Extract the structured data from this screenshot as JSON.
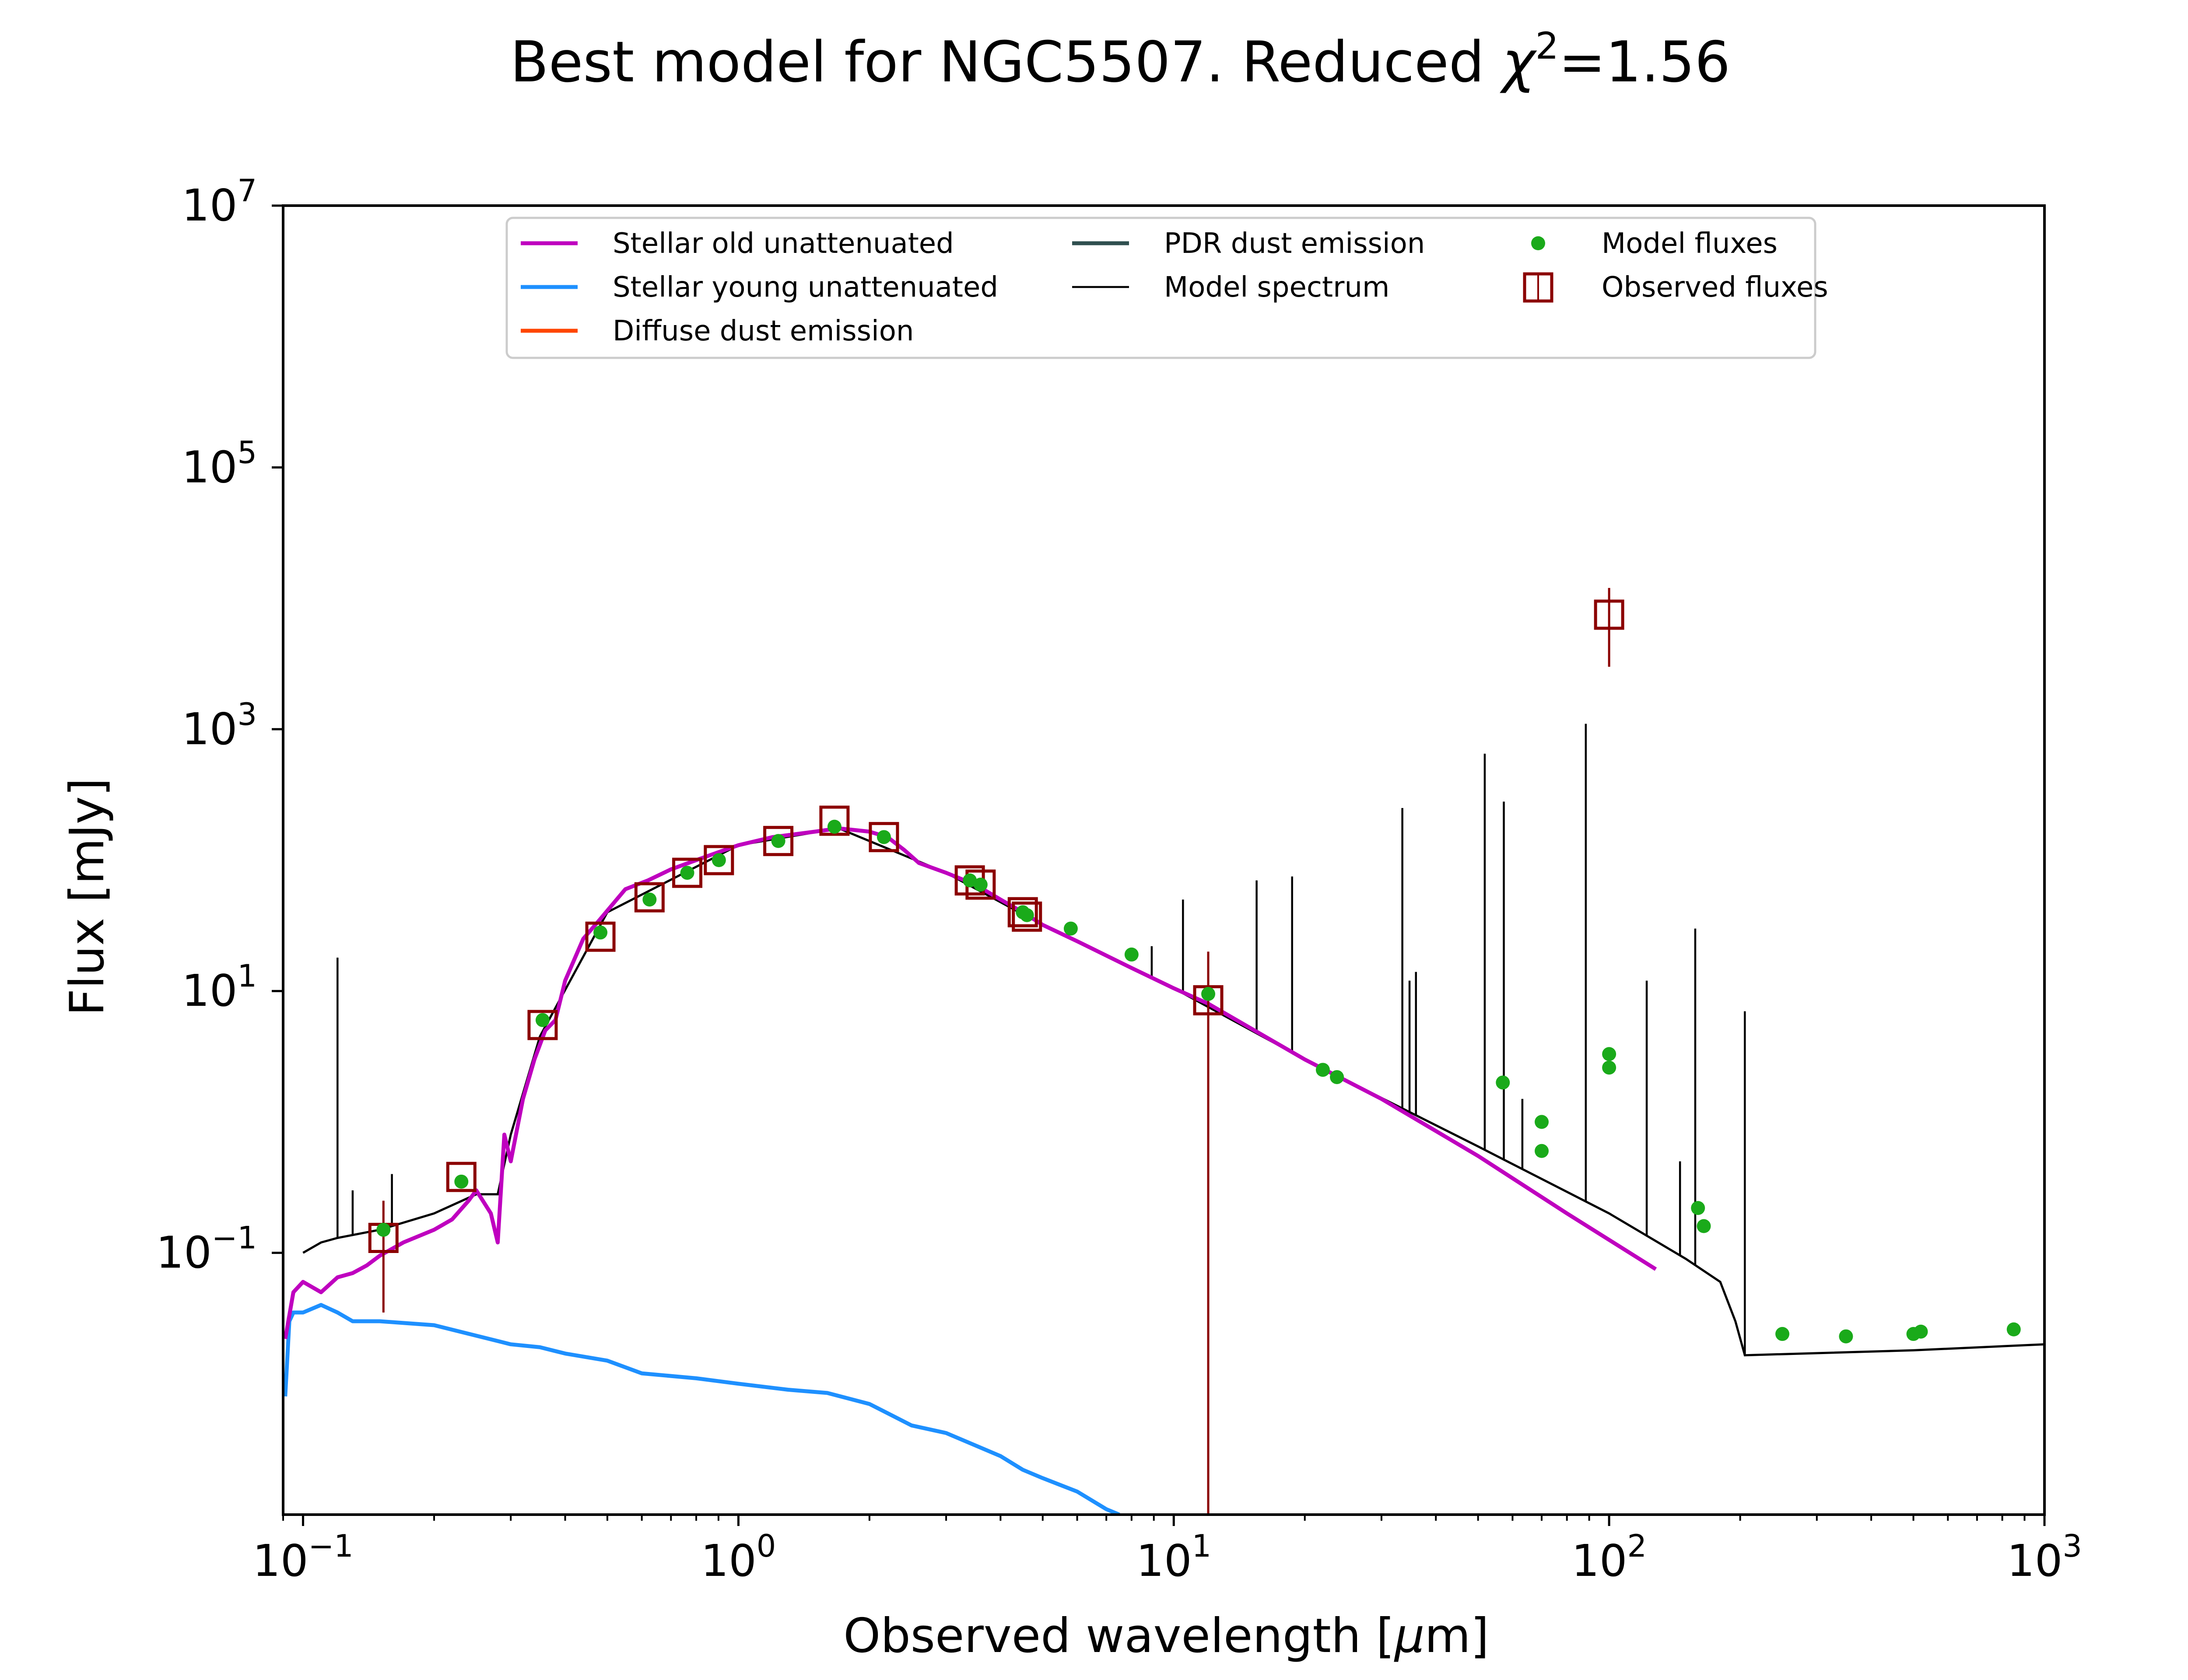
{
  "chart_data": {
    "type": "line",
    "title": {
      "prefix": "Best model for NGC5507. Reduced ",
      "chi": "χ",
      "chi_exp": "2",
      "suffix": "=1.56"
    },
    "xlabel": {
      "prefix": "Observed wavelength [",
      "mu": "μ",
      "suffix": "m]"
    },
    "ylabel": "Flux [mJy]",
    "xscale": "log",
    "yscale": "log",
    "xlim": [
      0.09,
      1000
    ],
    "ylim": [
      0.001,
      10000000
    ],
    "x_ticks": [
      {
        "value": 0.1,
        "base": "10",
        "exp": "−1"
      },
      {
        "value": 1,
        "base": "10",
        "exp": "0"
      },
      {
        "value": 10,
        "base": "10",
        "exp": "1"
      },
      {
        "value": 100,
        "base": "10",
        "exp": "2"
      },
      {
        "value": 1000,
        "base": "10",
        "exp": "3"
      }
    ],
    "y_ticks": [
      {
        "value": 0.1,
        "base": "10",
        "exp": "−1"
      },
      {
        "value": 10,
        "base": "10",
        "exp": "1"
      },
      {
        "value": 1000,
        "base": "10",
        "exp": "3"
      },
      {
        "value": 100000,
        "base": "10",
        "exp": "5"
      },
      {
        "value": 10000000,
        "base": "10",
        "exp": "7"
      }
    ],
    "grid": false,
    "legend": {
      "placement": "top-center",
      "entries": [
        {
          "label": "Stellar old unattenuated",
          "kind": "line",
          "color": "#bf00bf"
        },
        {
          "label": "Stellar young unattenuated",
          "kind": "line",
          "color": "#1e90ff"
        },
        {
          "label": "Diffuse dust emission",
          "kind": "line",
          "color": "#ff4500"
        },
        {
          "label": "PDR dust emission",
          "kind": "line",
          "color": "#2f4f4f"
        },
        {
          "label": "Model spectrum",
          "kind": "thin-line",
          "color": "#000000"
        },
        {
          "label": "Model fluxes",
          "kind": "dot",
          "color": "#1aaa1a"
        },
        {
          "label": "Observed fluxes",
          "kind": "square",
          "color": "#8b0000"
        }
      ]
    },
    "series": [
      {
        "name": "Stellar old unattenuated",
        "color": "#bf00bf",
        "x": [
          0.091,
          0.095,
          0.1,
          0.11,
          0.12,
          0.13,
          0.14,
          0.15,
          0.17,
          0.2,
          0.22,
          0.24,
          0.25,
          0.27,
          0.28,
          0.29,
          0.3,
          0.32,
          0.34,
          0.36,
          0.38,
          0.4,
          0.44,
          0.48,
          0.55,
          0.62,
          0.7,
          0.8,
          0.9,
          1.0,
          1.2,
          1.5,
          1.7,
          2.0,
          2.2,
          2.4,
          2.6,
          3.0,
          3.5,
          4.0,
          4.5,
          5,
          6,
          8,
          10,
          12,
          20,
          30,
          50,
          80,
          128
        ],
        "y": [
          0.022,
          0.05,
          0.06,
          0.05,
          0.065,
          0.07,
          0.08,
          0.095,
          0.12,
          0.15,
          0.18,
          0.25,
          0.3,
          0.2,
          0.12,
          0.8,
          0.5,
          1.5,
          3,
          5,
          6,
          12,
          25,
          35,
          60,
          70,
          85,
          100,
          115,
          130,
          150,
          165,
          175,
          165,
          150,
          120,
          95,
          80,
          65,
          50,
          40,
          32,
          24,
          15,
          10.5,
          8,
          3,
          1.5,
          0.55,
          0.2,
          0.075
        ]
      },
      {
        "name": "Stellar young unattenuated",
        "color": "#1e90ff",
        "x": [
          0.091,
          0.093,
          0.095,
          0.1,
          0.11,
          0.12,
          0.13,
          0.15,
          0.2,
          0.3,
          0.35,
          0.4,
          0.5,
          0.6,
          0.8,
          1.0,
          1.3,
          1.6,
          2.0,
          2.5,
          3.0,
          4.0,
          4.5,
          5.0,
          6.0,
          7.0,
          7.5
        ],
        "y": [
          0.008,
          0.03,
          0.035,
          0.035,
          0.04,
          0.035,
          0.03,
          0.03,
          0.028,
          0.02,
          0.019,
          0.017,
          0.015,
          0.012,
          0.011,
          0.01,
          0.009,
          0.0085,
          0.007,
          0.0048,
          0.0042,
          0.0028,
          0.0022,
          0.0019,
          0.0015,
          0.0011,
          0.001
        ]
      },
      {
        "name": "Model spectrum",
        "color": "#000000",
        "x": [
          0.1,
          0.11,
          0.12,
          0.15,
          0.2,
          0.25,
          0.28,
          0.3,
          0.35,
          0.5,
          1.0,
          1.7,
          3,
          5,
          10,
          20,
          50,
          100,
          150,
          180,
          195,
          205,
          500,
          1000
        ],
        "y": [
          0.1,
          0.12,
          0.13,
          0.15,
          0.2,
          0.28,
          0.28,
          0.8,
          4.5,
          40,
          130,
          175,
          80,
          32,
          10.5,
          3,
          0.65,
          0.2,
          0.09,
          0.06,
          0.03,
          0.0165,
          0.018,
          0.02
        ],
        "lines": [
          {
            "x": 0.12,
            "peak": 18
          },
          {
            "x": 0.13,
            "peak": 0.3
          },
          {
            "x": 0.16,
            "peak": 0.4
          },
          {
            "x": 8.9,
            "peak": 22
          },
          {
            "x": 10.5,
            "peak": 50
          },
          {
            "x": 15.5,
            "peak": 70
          },
          {
            "x": 18.7,
            "peak": 75
          },
          {
            "x": 33.5,
            "peak": 250
          },
          {
            "x": 34.8,
            "peak": 12
          },
          {
            "x": 36.0,
            "peak": 14
          },
          {
            "x": 51.8,
            "peak": 650
          },
          {
            "x": 57.3,
            "peak": 280
          },
          {
            "x": 63.2,
            "peak": 1.5
          },
          {
            "x": 88.4,
            "peak": 1100
          },
          {
            "x": 122,
            "peak": 12
          },
          {
            "x": 145.5,
            "peak": 0.5
          },
          {
            "x": 157.7,
            "peak": 30
          },
          {
            "x": 205,
            "peak": 7
          }
        ]
      },
      {
        "name": "Model fluxes",
        "color": "#1aaa1a",
        "x": [
          0.153,
          0.231,
          0.355,
          0.482,
          0.625,
          0.763,
          0.902,
          1.235,
          1.662,
          2.159,
          3.4,
          3.6,
          4.5,
          4.6,
          5.8,
          8.0,
          12.0,
          22.0,
          23.7,
          57,
          70,
          70,
          100,
          100,
          160,
          165,
          250,
          350,
          500,
          520,
          850
        ],
        "y": [
          0.15,
          0.35,
          6.0,
          28,
          50,
          80,
          100,
          140,
          180,
          150,
          70,
          65,
          40,
          38,
          30,
          19,
          9.5,
          2.5,
          2.2,
          2.0,
          1.0,
          0.6,
          3.3,
          2.6,
          0.22,
          0.16,
          0.024,
          0.023,
          0.024,
          0.025,
          0.026
        ]
      },
      {
        "name": "Observed fluxes",
        "color": "#8b0000",
        "points": [
          {
            "x": 0.153,
            "y": 0.13,
            "yerr_low": 0.035,
            "yerr_high": 0.25
          },
          {
            "x": 0.231,
            "y": 0.38
          },
          {
            "x": 0.355,
            "y": 5.5
          },
          {
            "x": 0.482,
            "y": 26
          },
          {
            "x": 0.625,
            "y": 52
          },
          {
            "x": 0.763,
            "y": 80
          },
          {
            "x": 0.902,
            "y": 100
          },
          {
            "x": 1.235,
            "y": 140
          },
          {
            "x": 1.662,
            "y": 200
          },
          {
            "x": 2.159,
            "y": 150
          },
          {
            "x": 3.4,
            "y": 70
          },
          {
            "x": 3.6,
            "y": 65
          },
          {
            "x": 4.5,
            "y": 40
          },
          {
            "x": 4.6,
            "y": 37
          },
          {
            "x": 12.0,
            "y": 8.5,
            "yerr_low": 0.001,
            "yerr_high": 20
          },
          {
            "x": 100,
            "y": 7500,
            "yerr_low": 3000,
            "yerr_high": 12000
          }
        ]
      }
    ]
  }
}
